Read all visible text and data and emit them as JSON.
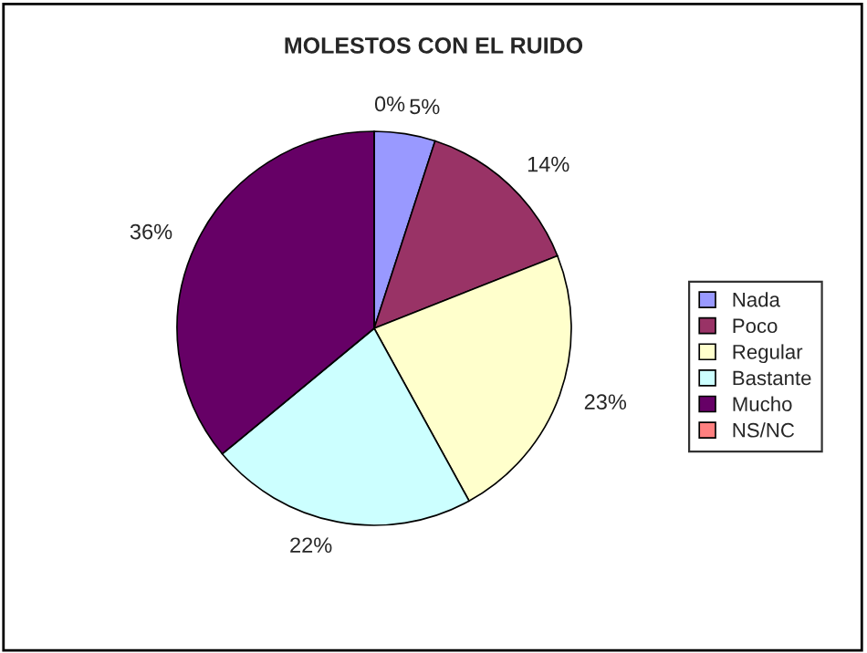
{
  "chart_data": {
    "type": "pie",
    "title": "MOLESTOS CON EL RUIDO",
    "categories": [
      "Nada",
      "Poco",
      "Regular",
      "Bastante",
      "Mucho",
      "NS/NC"
    ],
    "values": [
      5,
      14,
      23,
      22,
      36,
      0
    ],
    "value_labels": [
      "5%",
      "14%",
      "23%",
      "22%",
      "36%",
      "0%"
    ],
    "colors": [
      "#9999ff",
      "#993366",
      "#ffffcc",
      "#ccffff",
      "#660066",
      "#ff8080"
    ],
    "legend": "right"
  }
}
